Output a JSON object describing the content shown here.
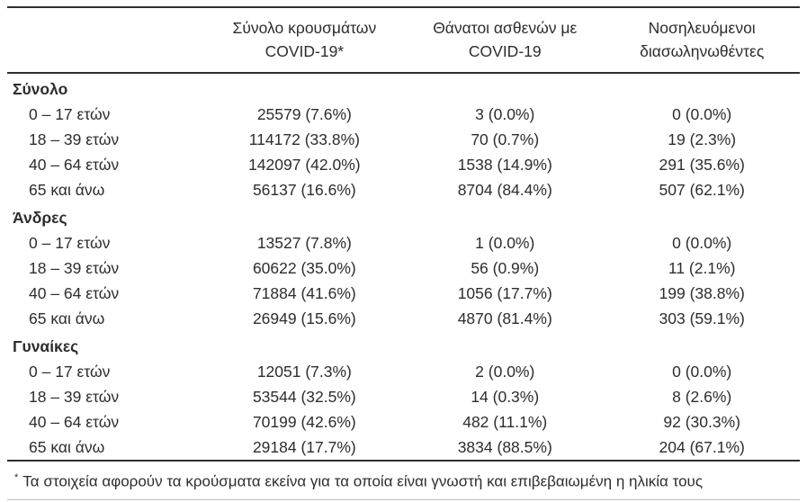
{
  "table": {
    "headers": [
      {
        "line1": "Σύνολο κρουσμάτων",
        "line2": "COVID-19*"
      },
      {
        "line1": "Θάνατοι ασθενών με",
        "line2": "COVID-19"
      },
      {
        "line1": "Νοσηλευόμενοι",
        "line2": "διασωληνωθέντες"
      }
    ],
    "sections": [
      {
        "title": "Σύνολο",
        "rows": [
          {
            "label": "0 – 17 ετών",
            "cases": "25579 (7.6%)",
            "deaths": "3 (0.0%)",
            "intubated": "0 (0.0%)"
          },
          {
            "label": "18 – 39 ετών",
            "cases": "114172 (33.8%)",
            "deaths": "70 (0.7%)",
            "intubated": "19 (2.3%)"
          },
          {
            "label": "40 – 64 ετών",
            "cases": "142097 (42.0%)",
            "deaths": "1538 (14.9%)",
            "intubated": "291 (35.6%)"
          },
          {
            "label": "65 και άνω",
            "cases": "56137 (16.6%)",
            "deaths": "8704 (84.4%)",
            "intubated": "507 (62.1%)"
          }
        ]
      },
      {
        "title": "Άνδρες",
        "rows": [
          {
            "label": "0 – 17 ετών",
            "cases": "13527 (7.8%)",
            "deaths": "1 (0.0%)",
            "intubated": "0 (0.0%)"
          },
          {
            "label": "18 – 39 ετών",
            "cases": "60622 (35.0%)",
            "deaths": "56 (0.9%)",
            "intubated": "11 (2.1%)"
          },
          {
            "label": "40 – 64 ετών",
            "cases": "71884 (41.6%)",
            "deaths": "1056 (17.7%)",
            "intubated": "199 (38.8%)"
          },
          {
            "label": "65 και άνω",
            "cases": "26949 (15.6%)",
            "deaths": "4870 (81.4%)",
            "intubated": "303 (59.1%)"
          }
        ]
      },
      {
        "title": "Γυναίκες",
        "rows": [
          {
            "label": "0 – 17 ετών",
            "cases": "12051 (7.3%)",
            "deaths": "2 (0.0%)",
            "intubated": "0 (0.0%)"
          },
          {
            "label": "18 – 39 ετών",
            "cases": "53544 (32.5%)",
            "deaths": "14 (0.3%)",
            "intubated": "8 (2.6%)"
          },
          {
            "label": "40 – 64 ετών",
            "cases": "70199 (42.6%)",
            "deaths": "482 (11.1%)",
            "intubated": "92 (30.3%)"
          },
          {
            "label": "65 και άνω",
            "cases": "29184 (17.7%)",
            "deaths": "3834 (88.5%)",
            "intubated": "204 (67.1%)"
          }
        ]
      }
    ]
  },
  "footnote": {
    "marker": "*",
    "text": "Τα στοιχεία αφορούν τα κρούσματα εκείνα για τα οποία είναι γνωστή και επιβεβαιωμένη η ηλικία τους"
  },
  "colors": {
    "text": "#2d2d2d",
    "rule_dark": "#2e2e2e",
    "rule_light": "#bdbdbd"
  }
}
